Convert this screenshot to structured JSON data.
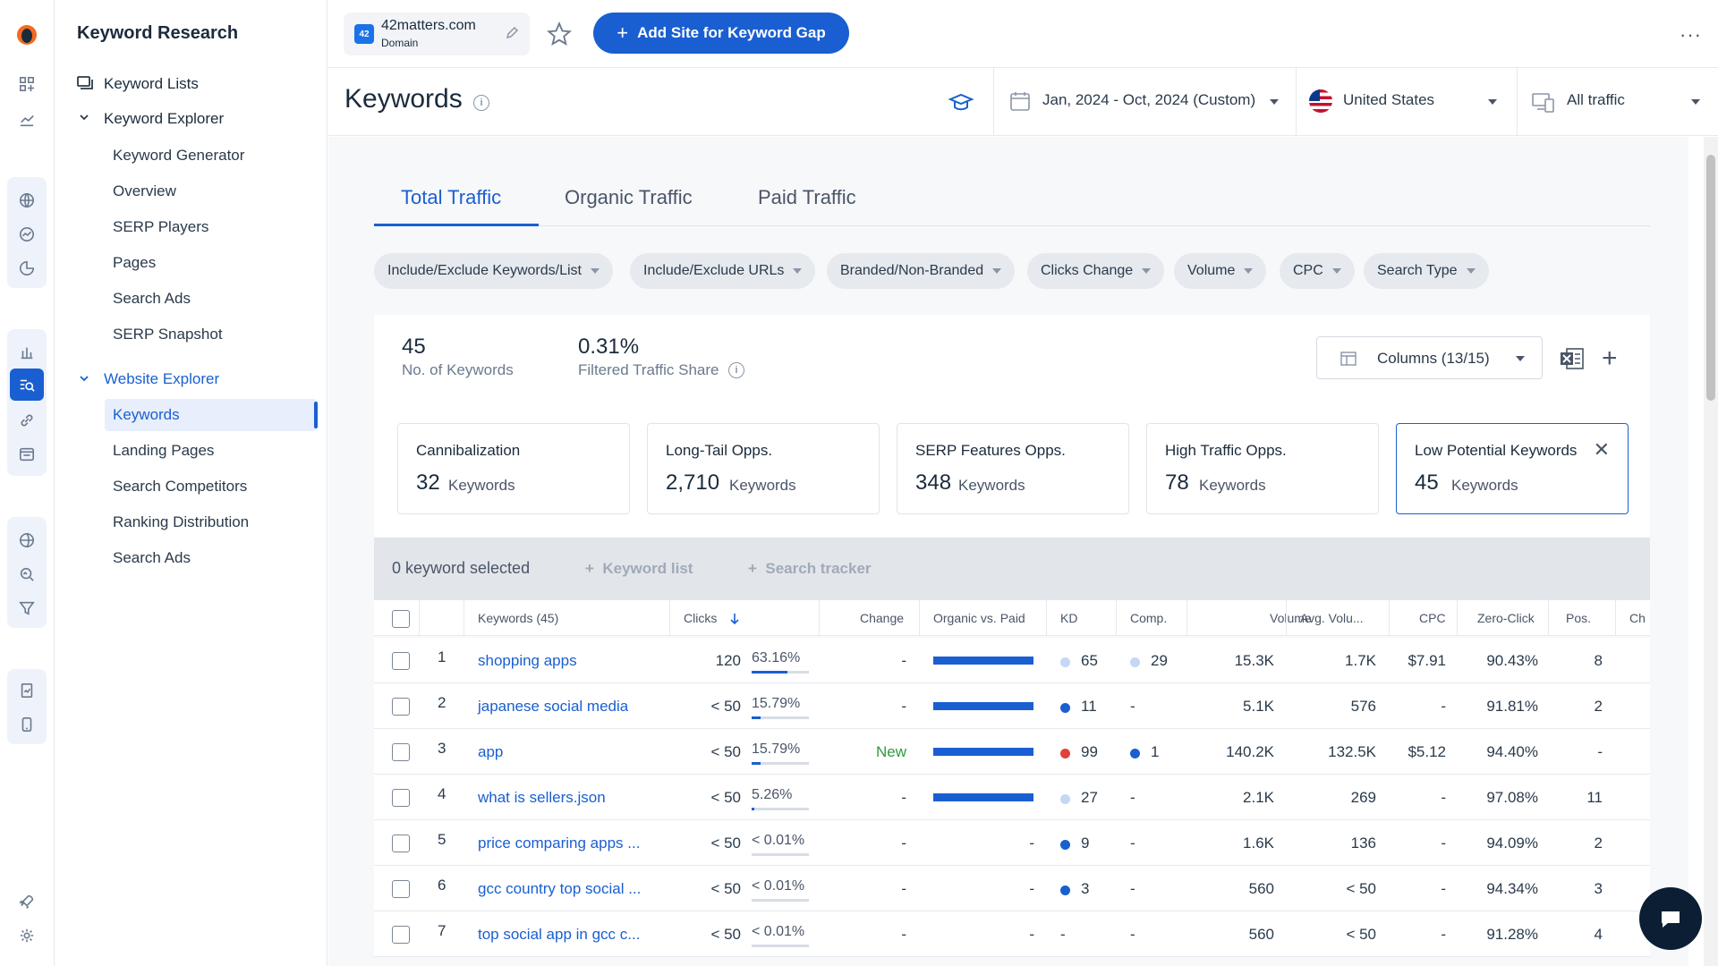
{
  "nav": {
    "title": "Keyword Research",
    "keyword_lists": "Keyword Lists",
    "keyword_explorer": "Keyword Explorer",
    "keyword_explorer_items": [
      "Keyword Generator",
      "Overview",
      "SERP Players",
      "Pages",
      "Search Ads",
      "SERP Snapshot"
    ],
    "website_explorer": "Website Explorer",
    "website_explorer_items": [
      "Keywords",
      "Landing Pages",
      "Search Competitors",
      "Ranking Distribution",
      "Search Ads"
    ]
  },
  "topbar": {
    "domain_name": "42matters.com",
    "domain_type": "Domain",
    "favicon_text": "42",
    "add_site_label": "Add Site for Keyword Gap",
    "more_label": "···"
  },
  "header": {
    "title": "Keywords",
    "date_range": "Jan, 2024 - Oct, 2024 (Custom)",
    "country": "United States",
    "traffic": "All traffic"
  },
  "tabs": [
    "Total Traffic",
    "Organic Traffic",
    "Paid Traffic"
  ],
  "filters": [
    "Include/Exclude Keywords/List",
    "Include/Exclude URLs",
    "Branded/Non-Branded",
    "Clicks Change",
    "Volume",
    "CPC",
    "Search Type"
  ],
  "stats": {
    "keywords_count": "45",
    "keywords_label": "No. of Keywords",
    "traffic_share": "0.31%",
    "traffic_share_label": "Filtered Traffic Share",
    "columns_label": "Columns (13/15)"
  },
  "opportunities": [
    {
      "title": "Cannibalization",
      "count": "32",
      "unit": "Keywords"
    },
    {
      "title": "Long-Tail Opps.",
      "count": "2,710",
      "unit": "Keywords"
    },
    {
      "title": "SERP Features Opps.",
      "count": "348",
      "unit": "Keywords"
    },
    {
      "title": "High Traffic Opps.",
      "count": "78",
      "unit": "Keywords"
    },
    {
      "title": "Low Potential Keywords",
      "count": "45",
      "unit": "Keywords"
    }
  ],
  "selection": {
    "text": "0 keyword selected",
    "keyword_list": "Keyword list",
    "search_tracker": "Search tracker"
  },
  "table": {
    "headers": [
      "Keywords (45)",
      "Clicks",
      "Change",
      "Organic vs. Paid",
      "KD",
      "Comp.",
      "Volume",
      "Avg. Volu...",
      "CPC",
      "Zero-Click",
      "Pos.",
      "Ch"
    ],
    "rows": [
      {
        "n": "1",
        "keyword": "shopping apps",
        "clicks": "120",
        "share": "63.16%",
        "share_fill": 0.63,
        "change": "-",
        "organic_paid": 1.0,
        "kd": "65",
        "kd_color": "#c5d7f5",
        "comp": "29",
        "comp_color": "#c5d7f5",
        "volume": "15.3K",
        "avg_volume": "1.7K",
        "cpc": "$7.91",
        "zero_click": "90.43%",
        "pos": "8"
      },
      {
        "n": "2",
        "keyword": "japanese social media",
        "clicks": "< 50",
        "share": "15.79%",
        "share_fill": 0.16,
        "change": "-",
        "organic_paid": 1.0,
        "kd": "11",
        "kd_color": "#1a5fd1",
        "comp": "-",
        "comp_color": "",
        "volume": "5.1K",
        "avg_volume": "576",
        "cpc": "-",
        "zero_click": "91.81%",
        "pos": "2"
      },
      {
        "n": "3",
        "keyword": "app",
        "clicks": "< 50",
        "share": "15.79%",
        "share_fill": 0.16,
        "change": "New",
        "organic_paid": 1.0,
        "kd": "99",
        "kd_color": "#e0413b",
        "comp": "1",
        "comp_color": "#1a5fd1",
        "volume": "140.2K",
        "avg_volume": "132.5K",
        "cpc": "$5.12",
        "zero_click": "94.40%",
        "pos": "-"
      },
      {
        "n": "4",
        "keyword": "what is sellers.json",
        "clicks": "< 50",
        "share": "5.26%",
        "share_fill": 0.05,
        "change": "-",
        "organic_paid": 1.0,
        "kd": "27",
        "kd_color": "#c5d7f5",
        "comp": "-",
        "comp_color": "",
        "volume": "2.1K",
        "avg_volume": "269",
        "cpc": "-",
        "zero_click": "97.08%",
        "pos": "11"
      },
      {
        "n": "5",
        "keyword": "price comparing apps ...",
        "clicks": "< 50",
        "share": "< 0.01%",
        "share_fill": 0.0,
        "change": "-",
        "organic_paid_text": "-",
        "kd": "9",
        "kd_color": "#1a5fd1",
        "comp": "-",
        "comp_color": "",
        "volume": "1.6K",
        "avg_volume": "136",
        "cpc": "-",
        "zero_click": "94.09%",
        "pos": "2"
      },
      {
        "n": "6",
        "keyword": "gcc country top social ...",
        "clicks": "< 50",
        "share": "< 0.01%",
        "share_fill": 0.0,
        "change": "-",
        "organic_paid_text": "-",
        "kd": "3",
        "kd_color": "#1a5fd1",
        "comp": "-",
        "comp_color": "",
        "volume": "560",
        "avg_volume": "< 50",
        "cpc": "-",
        "zero_click": "94.34%",
        "pos": "3"
      },
      {
        "n": "7",
        "keyword": "top social app in gcc c...",
        "clicks": "< 50",
        "share": "< 0.01%",
        "share_fill": 0.0,
        "change": "-",
        "organic_paid_text": "-",
        "kd": "-",
        "kd_color": "",
        "comp": "-",
        "comp_color": "",
        "volume": "560",
        "avg_volume": "< 50",
        "cpc": "-",
        "zero_click": "91.28%",
        "pos": "4"
      }
    ]
  },
  "colors": {
    "accent": "#1a5fd1",
    "new": "#2e9a3a"
  }
}
